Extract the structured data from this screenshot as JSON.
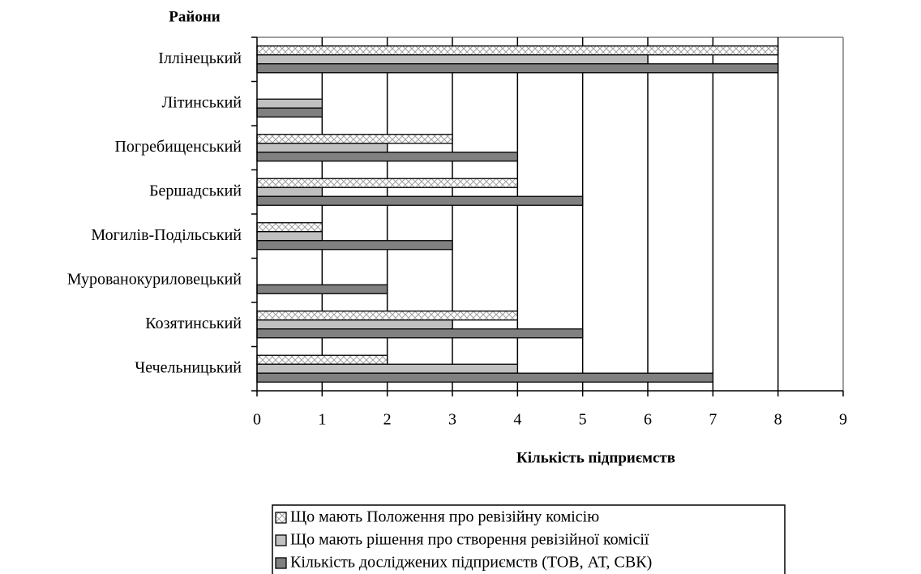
{
  "chart_data": {
    "type": "barh",
    "y_axis_label": "Райони",
    "x_axis_label": "Кількість підприємств",
    "categories": [
      "Іллінецький",
      "Літинський",
      "Погребищенський",
      "Бершадський",
      "Могилів-Подільський",
      "Мурованокуриловецький",
      "Козятинський",
      "Чечельницький"
    ],
    "series": [
      {
        "name": "Що мають Положення про ревізійну комісію",
        "color": "#a0a0a0",
        "pattern": "crosshatch",
        "values": [
          8,
          0,
          3,
          4,
          1,
          0,
          4,
          2
        ]
      },
      {
        "name": "Що мають рішення про створення ревізійної комісії",
        "color": "#c0c0c0",
        "values": [
          6,
          1,
          2,
          1,
          1,
          0,
          3,
          4
        ]
      },
      {
        "name": "Кількість досліджених підприємств (ТОВ, АТ, СВК)",
        "color": "#808080",
        "values": [
          8,
          1,
          4,
          5,
          3,
          2,
          5,
          7
        ]
      }
    ],
    "xlim": [
      0,
      9
    ],
    "xticks": [
      0,
      1,
      2,
      3,
      4,
      5,
      6,
      7,
      8,
      9
    ],
    "grid": true,
    "legend": "bottom"
  }
}
